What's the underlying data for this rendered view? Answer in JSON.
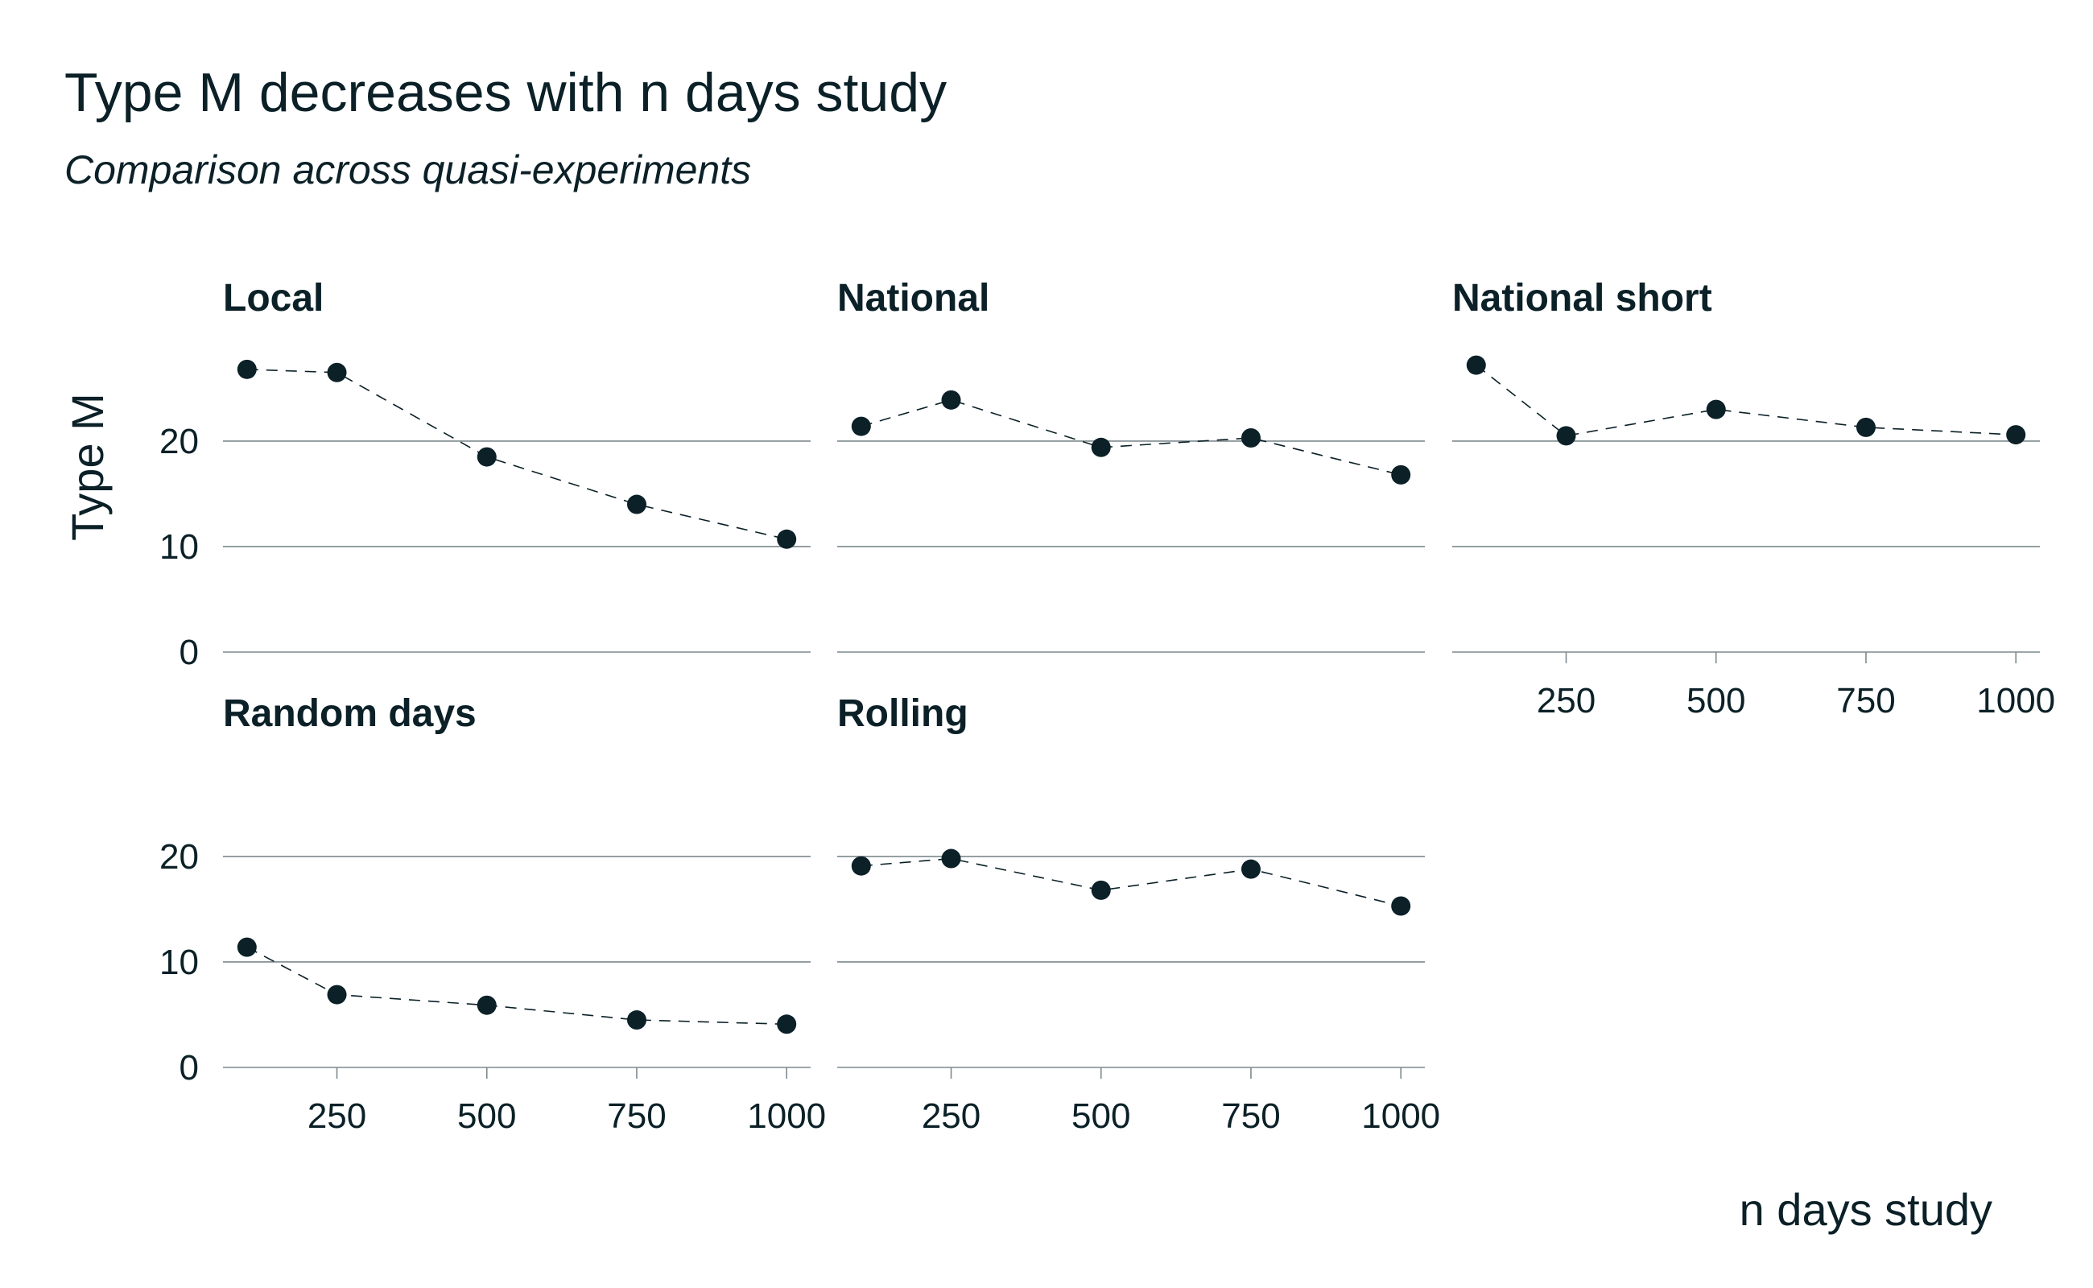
{
  "chart_data": {
    "type": "scatter",
    "title": "Type M decreases with n days study",
    "subtitle": "Comparison across quasi-experiments",
    "xlabel": "n days study",
    "ylabel": "Type M",
    "x": [
      100,
      250,
      500,
      750,
      1000
    ],
    "xticks": [
      250,
      500,
      750,
      1000
    ],
    "yticks": [
      0,
      10,
      20
    ],
    "xlim": [
      60,
      1040
    ],
    "ylim": [
      0,
      29
    ],
    "grid": "horizontal",
    "line_style": "dashed",
    "facets": [
      {
        "name": "Local",
        "values": [
          26.8,
          26.5,
          18.5,
          14.0,
          10.7
        ]
      },
      {
        "name": "National",
        "values": [
          21.4,
          23.9,
          19.4,
          20.3,
          16.8
        ]
      },
      {
        "name": "National short",
        "values": [
          27.2,
          20.5,
          23.0,
          21.3,
          20.6
        ]
      },
      {
        "name": "Random days",
        "values": [
          11.4,
          6.9,
          5.9,
          4.5,
          4.1
        ]
      },
      {
        "name": "Rolling",
        "values": [
          19.1,
          19.8,
          16.8,
          18.8,
          15.3
        ]
      }
    ]
  }
}
